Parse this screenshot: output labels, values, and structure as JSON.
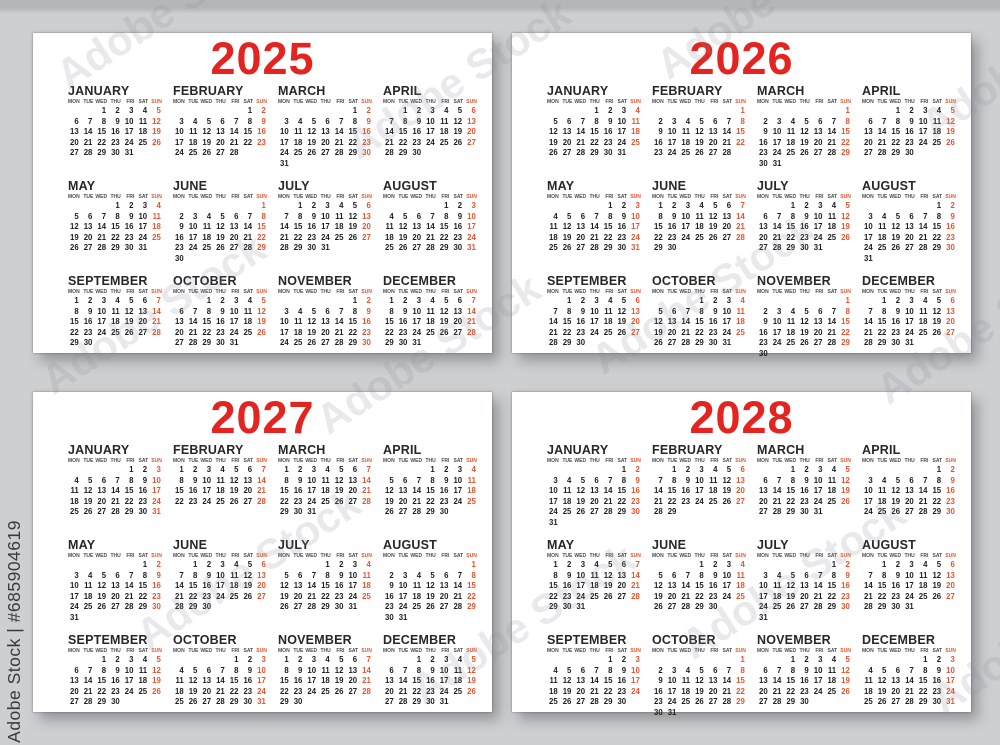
{
  "watermark": {
    "side_text": "Adobe Stock | #685904619",
    "tile_text": "Adobe Stock"
  },
  "weekday_headers": [
    "MON",
    "TUE",
    "WED",
    "THU",
    "FRI",
    "SAT",
    "SUN"
  ],
  "colors": {
    "background": "#cdcfd1",
    "top_band": "#b5b6b8",
    "card": "#ffffff",
    "year_red": "#e32421",
    "sunday_red": "#e8522c",
    "date_black": "#1c1c1c",
    "weekday_gray": "#4a4a4a",
    "watermark_gray": "#3a3a3c"
  },
  "years": [
    {
      "year": "2025",
      "months": [
        {
          "name": "JANUARY",
          "start": 2,
          "days": 31
        },
        {
          "name": "FEBRUARY",
          "start": 5,
          "days": 28
        },
        {
          "name": "MARCH",
          "start": 5,
          "days": 31
        },
        {
          "name": "APRIL",
          "start": 1,
          "days": 30
        },
        {
          "name": "MAY",
          "start": 3,
          "days": 31
        },
        {
          "name": "JUNE",
          "start": 6,
          "days": 30
        },
        {
          "name": "JULY",
          "start": 1,
          "days": 31
        },
        {
          "name": "AUGUST",
          "start": 4,
          "days": 31
        },
        {
          "name": "SEPTEMBER",
          "start": 0,
          "days": 30
        },
        {
          "name": "OCTOBER",
          "start": 2,
          "days": 31
        },
        {
          "name": "NOVEMBER",
          "start": 5,
          "days": 30
        },
        {
          "name": "DECEMBER",
          "start": 0,
          "days": 31
        }
      ]
    },
    {
      "year": "2026",
      "months": [
        {
          "name": "JANUARY",
          "start": 3,
          "days": 31
        },
        {
          "name": "FEBRUARY",
          "start": 6,
          "days": 28
        },
        {
          "name": "MARCH",
          "start": 6,
          "days": 31
        },
        {
          "name": "APRIL",
          "start": 2,
          "days": 30
        },
        {
          "name": "MAY",
          "start": 4,
          "days": 31
        },
        {
          "name": "JUNE",
          "start": 0,
          "days": 30
        },
        {
          "name": "JULY",
          "start": 2,
          "days": 31
        },
        {
          "name": "AUGUST",
          "start": 5,
          "days": 31
        },
        {
          "name": "SEPTEMBER",
          "start": 1,
          "days": 30
        },
        {
          "name": "OCTOBER",
          "start": 3,
          "days": 31
        },
        {
          "name": "NOVEMBER",
          "start": 6,
          "days": 30
        },
        {
          "name": "DECEMBER",
          "start": 1,
          "days": 31
        }
      ]
    },
    {
      "year": "2027",
      "months": [
        {
          "name": "JANUARY",
          "start": 4,
          "days": 31
        },
        {
          "name": "FEBRUARY",
          "start": 0,
          "days": 28
        },
        {
          "name": "MARCH",
          "start": 0,
          "days": 31
        },
        {
          "name": "APRIL",
          "start": 3,
          "days": 30
        },
        {
          "name": "MAY",
          "start": 5,
          "days": 31
        },
        {
          "name": "JUNE",
          "start": 1,
          "days": 30
        },
        {
          "name": "JULY",
          "start": 3,
          "days": 31
        },
        {
          "name": "AUGUST",
          "start": 6,
          "days": 31
        },
        {
          "name": "SEPTEMBER",
          "start": 2,
          "days": 30
        },
        {
          "name": "OCTOBER",
          "start": 4,
          "days": 31
        },
        {
          "name": "NOVEMBER",
          "start": 0,
          "days": 30
        },
        {
          "name": "DECEMBER",
          "start": 2,
          "days": 31
        }
      ]
    },
    {
      "year": "2028",
      "months": [
        {
          "name": "JANUARY",
          "start": 5,
          "days": 31
        },
        {
          "name": "FEBRUARY",
          "start": 1,
          "days": 29
        },
        {
          "name": "MARCH",
          "start": 2,
          "days": 31
        },
        {
          "name": "APRIL",
          "start": 5,
          "days": 30
        },
        {
          "name": "MAY",
          "start": 0,
          "days": 31
        },
        {
          "name": "JUNE",
          "start": 3,
          "days": 30
        },
        {
          "name": "JULY",
          "start": 5,
          "days": 31
        },
        {
          "name": "AUGUST",
          "start": 1,
          "days": 31
        },
        {
          "name": "SEPTEMBER",
          "start": 4,
          "days": 30
        },
        {
          "name": "OCTOBER",
          "start": 6,
          "days": 31
        },
        {
          "name": "NOVEMBER",
          "start": 2,
          "days": 30
        },
        {
          "name": "DECEMBER",
          "start": 4,
          "days": 31
        }
      ]
    }
  ]
}
